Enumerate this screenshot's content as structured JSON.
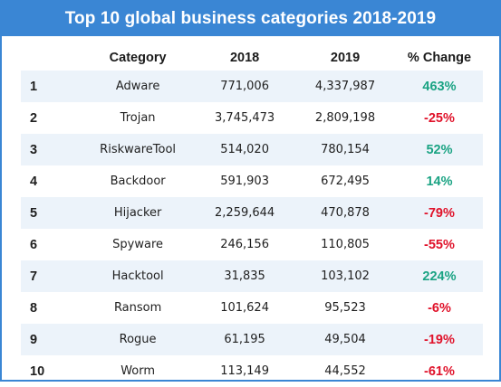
{
  "title": "Top 10 global business categories 2018-2019",
  "colors": {
    "header_bg": "#3a86d4",
    "row_shade": "#ecf3fa",
    "positive": "#1aa383",
    "negative": "#e0122a"
  },
  "table": {
    "headers": [
      "",
      "Category",
      "2018",
      "2019",
      "% Change"
    ],
    "rows": [
      {
        "rank": "1",
        "category": "Adware",
        "y2018": "771,006",
        "y2019": "4,337,987",
        "change": "463%",
        "sign": "pos"
      },
      {
        "rank": "2",
        "category": "Trojan",
        "y2018": "3,745,473",
        "y2019": "2,809,198",
        "change": "-25%",
        "sign": "neg"
      },
      {
        "rank": "3",
        "category": "RiskwareTool",
        "y2018": "514,020",
        "y2019": "780,154",
        "change": "52%",
        "sign": "pos"
      },
      {
        "rank": "4",
        "category": "Backdoor",
        "y2018": "591,903",
        "y2019": "672,495",
        "change": "14%",
        "sign": "pos"
      },
      {
        "rank": "5",
        "category": "Hijacker",
        "y2018": "2,259,644",
        "y2019": "470,878",
        "change": "-79%",
        "sign": "neg"
      },
      {
        "rank": "6",
        "category": "Spyware",
        "y2018": "246,156",
        "y2019": "110,805",
        "change": "-55%",
        "sign": "neg"
      },
      {
        "rank": "7",
        "category": "Hacktool",
        "y2018": "31,835",
        "y2019": "103,102",
        "change": "224%",
        "sign": "pos"
      },
      {
        "rank": "8",
        "category": "Ransom",
        "y2018": "101,624",
        "y2019": "95,523",
        "change": "-6%",
        "sign": "neg"
      },
      {
        "rank": "9",
        "category": "Rogue",
        "y2018": "61,195",
        "y2019": "49,504",
        "change": "-19%",
        "sign": "neg"
      },
      {
        "rank": "10",
        "category": "Worm",
        "y2018": "113,149",
        "y2019": "44,552",
        "change": "-61%",
        "sign": "neg"
      }
    ]
  },
  "chart_data": {
    "type": "table",
    "title": "Top 10 global business categories 2018-2019",
    "columns": [
      "",
      "Category",
      "2018",
      "2019",
      "% Change"
    ],
    "categories": [
      "Adware",
      "Trojan",
      "RiskwareTool",
      "Backdoor",
      "Hijacker",
      "Spyware",
      "Hacktool",
      "Ransom",
      "Rogue",
      "Worm"
    ],
    "series": [
      {
        "name": "2018",
        "values": [
          771006,
          3745473,
          514020,
          591903,
          2259644,
          246156,
          31835,
          101624,
          61195,
          113149
        ]
      },
      {
        "name": "2019",
        "values": [
          4337987,
          2809198,
          780154,
          672495,
          470878,
          110805,
          103102,
          95523,
          49504,
          44552
        ]
      },
      {
        "name": "% Change",
        "values": [
          463,
          -25,
          52,
          14,
          -79,
          -55,
          224,
          -6,
          -19,
          -61
        ]
      }
    ]
  }
}
